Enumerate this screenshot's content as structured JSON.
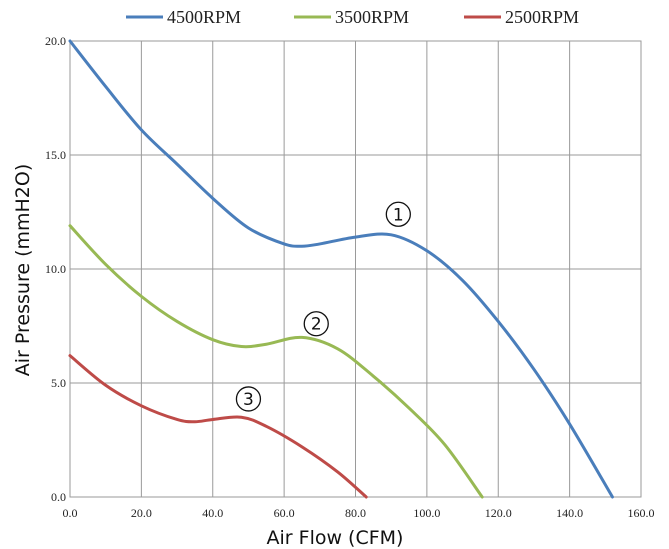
{
  "chart_data": {
    "type": "line",
    "xlabel": "Air Flow (CFM)",
    "ylabel": "Air Pressure (mmH2O)",
    "xlim": [
      0,
      160
    ],
    "ylim": [
      0,
      20
    ],
    "x_ticks": [
      "0.0",
      "20.0",
      "40.0",
      "60.0",
      "80.0",
      "100.0",
      "120.0",
      "140.0",
      "160.0"
    ],
    "y_ticks": [
      "0.0",
      "5.0",
      "10.0",
      "15.0",
      "20.0"
    ],
    "grid": true,
    "legend_position": "top",
    "series": [
      {
        "name": "4500RPM",
        "color": "#4a7ebb",
        "x": [
          0,
          10,
          20,
          30,
          40,
          50,
          60,
          65,
          70,
          80,
          90,
          100,
          110,
          120,
          130,
          140,
          152
        ],
        "y": [
          20.0,
          18.0,
          16.1,
          14.6,
          13.1,
          11.8,
          11.1,
          11.0,
          11.1,
          11.4,
          11.5,
          10.8,
          9.5,
          7.7,
          5.6,
          3.2,
          0.0
        ]
      },
      {
        "name": "3500RPM",
        "color": "#98b954",
        "x": [
          0,
          10,
          20,
          30,
          40,
          48,
          55,
          65,
          75,
          85,
          95,
          105,
          115.5
        ],
        "y": [
          11.9,
          10.2,
          8.8,
          7.7,
          6.9,
          6.6,
          6.7,
          7.0,
          6.5,
          5.3,
          3.9,
          2.3,
          0.0
        ]
      },
      {
        "name": "2500RPM",
        "color": "#be4b48",
        "x": [
          0,
          10,
          20,
          30,
          35,
          40,
          48,
          55,
          65,
          75,
          83
        ],
        "y": [
          6.2,
          4.9,
          4.0,
          3.4,
          3.3,
          3.4,
          3.5,
          3.1,
          2.2,
          1.1,
          0.0
        ]
      }
    ],
    "markers": [
      {
        "label": "1",
        "x": 92,
        "y": 12.4
      },
      {
        "label": "2",
        "x": 69,
        "y": 7.6
      },
      {
        "label": "3",
        "x": 50,
        "y": 4.3
      }
    ]
  }
}
